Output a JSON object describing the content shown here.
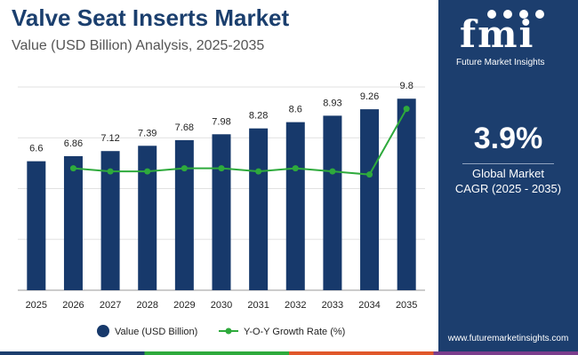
{
  "header": {
    "title": "Valve Seat Inserts Market",
    "subtitle": "Value (USD Billion) Analysis, 2025-2035"
  },
  "sidebar": {
    "logo_text": "fmi",
    "logo_tagline": "Future Market Insights",
    "cagr_value": "3.9%",
    "cagr_label": "Global Market",
    "cagr_range": "CAGR (2025 - 2035)",
    "website": "www.futuremarketinsights.com"
  },
  "colors": {
    "bar": "#17396b",
    "line": "#2eaa3c",
    "sidebar_bg": "#1c3e6e",
    "title": "#1b3f6e",
    "stripe": [
      "#1c3e6e",
      "#2eaa3c",
      "#e0572a",
      "#7a3d8c"
    ]
  },
  "chart_data": {
    "type": "bar",
    "title": "Valve Seat Inserts Market",
    "categories": [
      "2025",
      "2026",
      "2027",
      "2028",
      "2029",
      "2030",
      "2031",
      "2032",
      "2033",
      "2034",
      "2035"
    ],
    "series": [
      {
        "name": "Value (USD Billion)",
        "kind": "bar",
        "values": [
          6.6,
          6.86,
          7.12,
          7.39,
          7.68,
          7.98,
          8.28,
          8.6,
          8.93,
          9.26,
          9.8
        ],
        "labels": [
          "6.6",
          "6.86",
          "7.12",
          "7.39",
          "7.68",
          "7.98",
          "8.28",
          "8.6",
          "8.93",
          "9.26",
          "9.8"
        ]
      },
      {
        "name": "Y-O-Y Growth Rate (%)",
        "kind": "line",
        "values": [
          null,
          3.9,
          3.8,
          3.8,
          3.9,
          3.9,
          3.8,
          3.9,
          3.8,
          3.7,
          5.8
        ]
      }
    ],
    "ylim": [
      0,
      10.4
    ],
    "growth_ylim": [
      0,
      6.5
    ],
    "grid": true,
    "legend": "bottom",
    "xlabel": "",
    "ylabel": ""
  }
}
